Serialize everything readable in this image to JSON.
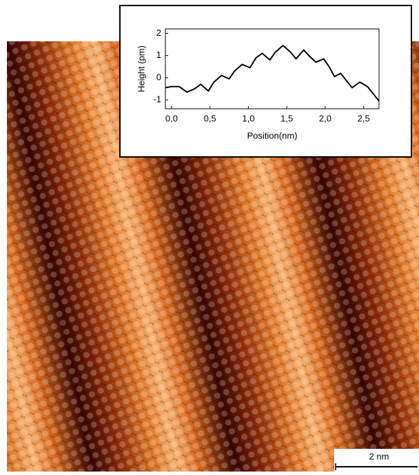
{
  "chart_data": {
    "type": "line",
    "xlabel": "Position(nm)",
    "ylabel": "Height (pm)",
    "x": [
      -0.08,
      0.0,
      0.1,
      0.2,
      0.3,
      0.38,
      0.48,
      0.55,
      0.65,
      0.75,
      0.82,
      0.92,
      1.02,
      1.1,
      1.18,
      1.28,
      1.35,
      1.45,
      1.55,
      1.62,
      1.72,
      1.8,
      1.88,
      1.98,
      2.05,
      2.12,
      2.2,
      2.28,
      2.35,
      2.45,
      2.55,
      2.7
    ],
    "values": [
      -0.45,
      -0.4,
      -0.4,
      -0.65,
      -0.5,
      -0.3,
      -0.6,
      -0.2,
      0.1,
      -0.05,
      0.3,
      0.6,
      0.45,
      0.9,
      1.1,
      0.8,
      1.15,
      1.45,
      1.15,
      0.85,
      1.25,
      0.95,
      0.7,
      0.85,
      0.5,
      0.05,
      0.2,
      -0.15,
      -0.45,
      -0.2,
      -0.4,
      -1.05
    ],
    "color": "#000000",
    "xlim": [
      -0.08,
      2.7
    ],
    "ylim": [
      -1.4,
      2.2
    ],
    "xticks": [
      {
        "value": 0.0,
        "label": "0,0"
      },
      {
        "value": 0.5,
        "label": "0,5"
      },
      {
        "value": 1.0,
        "label": "1,0"
      },
      {
        "value": 1.5,
        "label": "1,5"
      },
      {
        "value": 2.0,
        "label": "2,0"
      },
      {
        "value": 2.5,
        "label": "2,5"
      }
    ],
    "yticks": [
      -1,
      0,
      1,
      2
    ]
  },
  "scale_bar": "2 nm"
}
